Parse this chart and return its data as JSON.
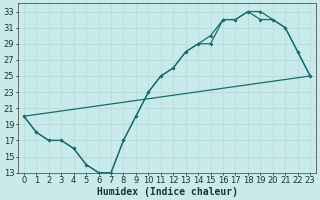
{
  "bg_color": "#c8eaea",
  "grid_color": "#d0e8e8",
  "line_color": "#1a6b6b",
  "xlabel": "Humidex (Indice chaleur)",
  "xlim": [
    -0.5,
    23.5
  ],
  "ylim": [
    13,
    34
  ],
  "xticks": [
    0,
    1,
    2,
    3,
    4,
    5,
    6,
    7,
    8,
    9,
    10,
    11,
    12,
    13,
    14,
    15,
    16,
    17,
    18,
    19,
    20,
    21,
    22,
    23
  ],
  "yticks": [
    13,
    15,
    17,
    19,
    21,
    23,
    25,
    27,
    29,
    31,
    33
  ],
  "curve1_x": [
    0,
    1,
    2,
    3,
    4,
    5,
    6,
    7,
    8,
    9,
    10,
    11,
    12,
    13,
    14,
    15,
    16,
    17,
    18,
    19,
    20,
    21,
    22,
    23
  ],
  "curve1_y": [
    20,
    18,
    17,
    17,
    16,
    14,
    13,
    13,
    17,
    20,
    23,
    25,
    26,
    28,
    29,
    29,
    32,
    32,
    33,
    33,
    32,
    31,
    28,
    25
  ],
  "curve2_x": [
    0,
    1,
    2,
    3,
    4,
    5,
    6,
    7,
    8,
    9,
    10,
    11,
    12,
    13,
    14,
    15,
    16,
    17,
    18,
    19,
    20,
    21,
    22,
    23
  ],
  "curve2_y": [
    20,
    18,
    17,
    17,
    16,
    14,
    13,
    13,
    17,
    20,
    23,
    25,
    26,
    28,
    29,
    30,
    32,
    32,
    33,
    32,
    32,
    31,
    28,
    25
  ],
  "curve3_x": [
    0,
    23
  ],
  "curve3_y": [
    20,
    25
  ],
  "font_size": 6,
  "xlabel_size": 7,
  "marker_size": 2.0,
  "line_width": 0.9
}
